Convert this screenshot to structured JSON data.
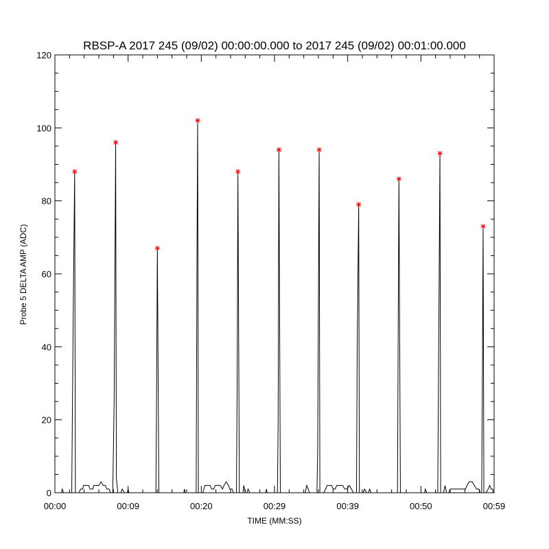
{
  "chart_data": {
    "type": "line",
    "title": "RBSP-A 2017 245 (09/02) 00:00:00.000 to 2017 245 (09/02) 00:01:00.000",
    "xlabel": "TIME (MM:SS)",
    "ylabel": "Probe 5 DELTA AMP (ADC)",
    "xlim": [
      0,
      60
    ],
    "ylim": [
      0,
      120
    ],
    "x_ticks": [
      {
        "value": 0,
        "label": "00:00"
      },
      {
        "value": 10,
        "label": "00:09"
      },
      {
        "value": 20,
        "label": "00:20"
      },
      {
        "value": 30,
        "label": "00:29"
      },
      {
        "value": 40,
        "label": "00:39"
      },
      {
        "value": 50,
        "label": "00:50"
      },
      {
        "value": 60,
        "label": "00:59"
      }
    ],
    "y_ticks": [
      0,
      20,
      40,
      60,
      80,
      100,
      120
    ],
    "grid": false,
    "colors": {
      "line": "#000000",
      "peak_marker": "#ff0000"
    },
    "series": [
      {
        "values": [
          [
            0.5,
            0
          ],
          [
            0.9,
            0
          ],
          [
            1.0,
            1
          ],
          [
            1.2,
            0
          ],
          [
            2.3,
            0
          ],
          [
            2.5,
            48
          ],
          [
            2.7,
            88
          ],
          [
            2.8,
            0
          ],
          [
            3.3,
            0
          ],
          [
            3.5,
            1
          ],
          [
            3.8,
            1
          ],
          [
            3.9,
            2
          ],
          [
            4.6,
            2
          ],
          [
            4.8,
            1
          ],
          [
            5.2,
            1
          ],
          [
            5.3,
            2
          ],
          [
            6.0,
            2
          ],
          [
            6.3,
            3
          ],
          [
            6.6,
            2
          ],
          [
            6.9,
            2
          ],
          [
            7.1,
            1
          ],
          [
            7.4,
            1
          ],
          [
            7.6,
            0
          ],
          [
            7.9,
            0
          ],
          [
            8.1,
            26
          ],
          [
            8.3,
            96
          ],
          [
            8.4,
            4
          ],
          [
            8.6,
            0
          ],
          [
            9.0,
            0
          ],
          [
            9.2,
            1
          ],
          [
            9.5,
            0
          ],
          [
            9.9,
            0
          ],
          [
            10.0,
            1
          ],
          [
            10.1,
            0
          ],
          [
            13.8,
            0
          ],
          [
            13.9,
            30
          ],
          [
            14.0,
            67
          ],
          [
            14.2,
            0
          ],
          [
            17.6,
            0
          ],
          [
            17.7,
            1
          ],
          [
            17.8,
            0
          ],
          [
            19.3,
            0
          ],
          [
            19.4,
            60
          ],
          [
            19.5,
            102
          ],
          [
            19.6,
            0
          ],
          [
            20.2,
            0
          ],
          [
            20.5,
            2
          ],
          [
            21.2,
            2
          ],
          [
            21.4,
            1
          ],
          [
            21.7,
            1
          ],
          [
            21.9,
            2
          ],
          [
            22.6,
            2
          ],
          [
            22.9,
            1
          ],
          [
            23.1,
            2
          ],
          [
            23.4,
            3
          ],
          [
            23.7,
            2
          ],
          [
            23.9,
            1
          ],
          [
            24.2,
            1
          ],
          [
            24.4,
            0
          ],
          [
            24.8,
            0
          ],
          [
            24.9,
            30
          ],
          [
            25.0,
            88
          ],
          [
            25.2,
            0
          ],
          [
            25.7,
            0
          ],
          [
            25.8,
            2
          ],
          [
            26.0,
            0
          ],
          [
            26.2,
            0
          ],
          [
            26.4,
            1
          ],
          [
            26.6,
            0
          ],
          [
            28.8,
            0
          ],
          [
            28.9,
            1
          ],
          [
            29.0,
            0
          ],
          [
            30.4,
            0
          ],
          [
            30.5,
            20
          ],
          [
            30.6,
            94
          ],
          [
            30.8,
            0
          ],
          [
            34.2,
            0
          ],
          [
            34.4,
            2
          ],
          [
            34.6,
            1
          ],
          [
            34.8,
            0
          ],
          [
            35.8,
            0
          ],
          [
            35.9,
            12
          ],
          [
            36.1,
            94
          ],
          [
            36.2,
            0
          ],
          [
            36.7,
            0
          ],
          [
            37.0,
            1
          ],
          [
            37.2,
            2
          ],
          [
            37.8,
            2
          ],
          [
            38.0,
            1
          ],
          [
            38.3,
            1
          ],
          [
            38.5,
            2
          ],
          [
            39.3,
            2
          ],
          [
            39.6,
            1
          ],
          [
            39.9,
            1
          ],
          [
            40.2,
            2
          ],
          [
            40.5,
            1
          ],
          [
            40.8,
            0
          ],
          [
            41.2,
            0
          ],
          [
            41.3,
            40
          ],
          [
            41.5,
            79
          ],
          [
            41.6,
            0
          ],
          [
            42.1,
            0
          ],
          [
            42.3,
            1
          ],
          [
            42.6,
            0
          ],
          [
            42.8,
            0
          ],
          [
            43.0,
            1
          ],
          [
            43.2,
            0
          ],
          [
            46.8,
            0
          ],
          [
            46.9,
            45
          ],
          [
            47.0,
            86
          ],
          [
            47.2,
            0
          ],
          [
            50.5,
            0
          ],
          [
            50.6,
            1
          ],
          [
            50.8,
            0
          ],
          [
            52.3,
            0
          ],
          [
            52.4,
            30
          ],
          [
            52.6,
            93
          ],
          [
            52.7,
            0
          ],
          [
            53.1,
            0
          ],
          [
            53.3,
            2
          ],
          [
            53.5,
            0
          ],
          [
            53.8,
            0
          ],
          [
            54.0,
            1
          ],
          [
            54.7,
            1
          ],
          [
            55.3,
            1
          ],
          [
            56.1,
            1
          ],
          [
            56.3,
            2
          ],
          [
            56.6,
            3
          ],
          [
            57.0,
            3
          ],
          [
            57.3,
            2
          ],
          [
            57.6,
            1
          ],
          [
            57.9,
            1
          ],
          [
            58.1,
            0
          ],
          [
            58.3,
            0
          ],
          [
            58.4,
            30
          ],
          [
            58.5,
            73
          ],
          [
            58.6,
            0
          ],
          [
            58.9,
            0
          ],
          [
            59.2,
            1
          ],
          [
            59.4,
            2
          ],
          [
            59.6,
            1
          ],
          [
            59.8,
            1
          ],
          [
            59.9,
            0
          ]
        ]
      }
    ],
    "peaks": [
      {
        "x": 2.7,
        "y": 88
      },
      {
        "x": 8.3,
        "y": 96
      },
      {
        "x": 14.0,
        "y": 67
      },
      {
        "x": 19.5,
        "y": 102
      },
      {
        "x": 25.0,
        "y": 88
      },
      {
        "x": 30.6,
        "y": 94
      },
      {
        "x": 36.1,
        "y": 94
      },
      {
        "x": 41.5,
        "y": 79
      },
      {
        "x": 47.0,
        "y": 86
      },
      {
        "x": 52.6,
        "y": 93
      },
      {
        "x": 58.5,
        "y": 73
      }
    ]
  }
}
